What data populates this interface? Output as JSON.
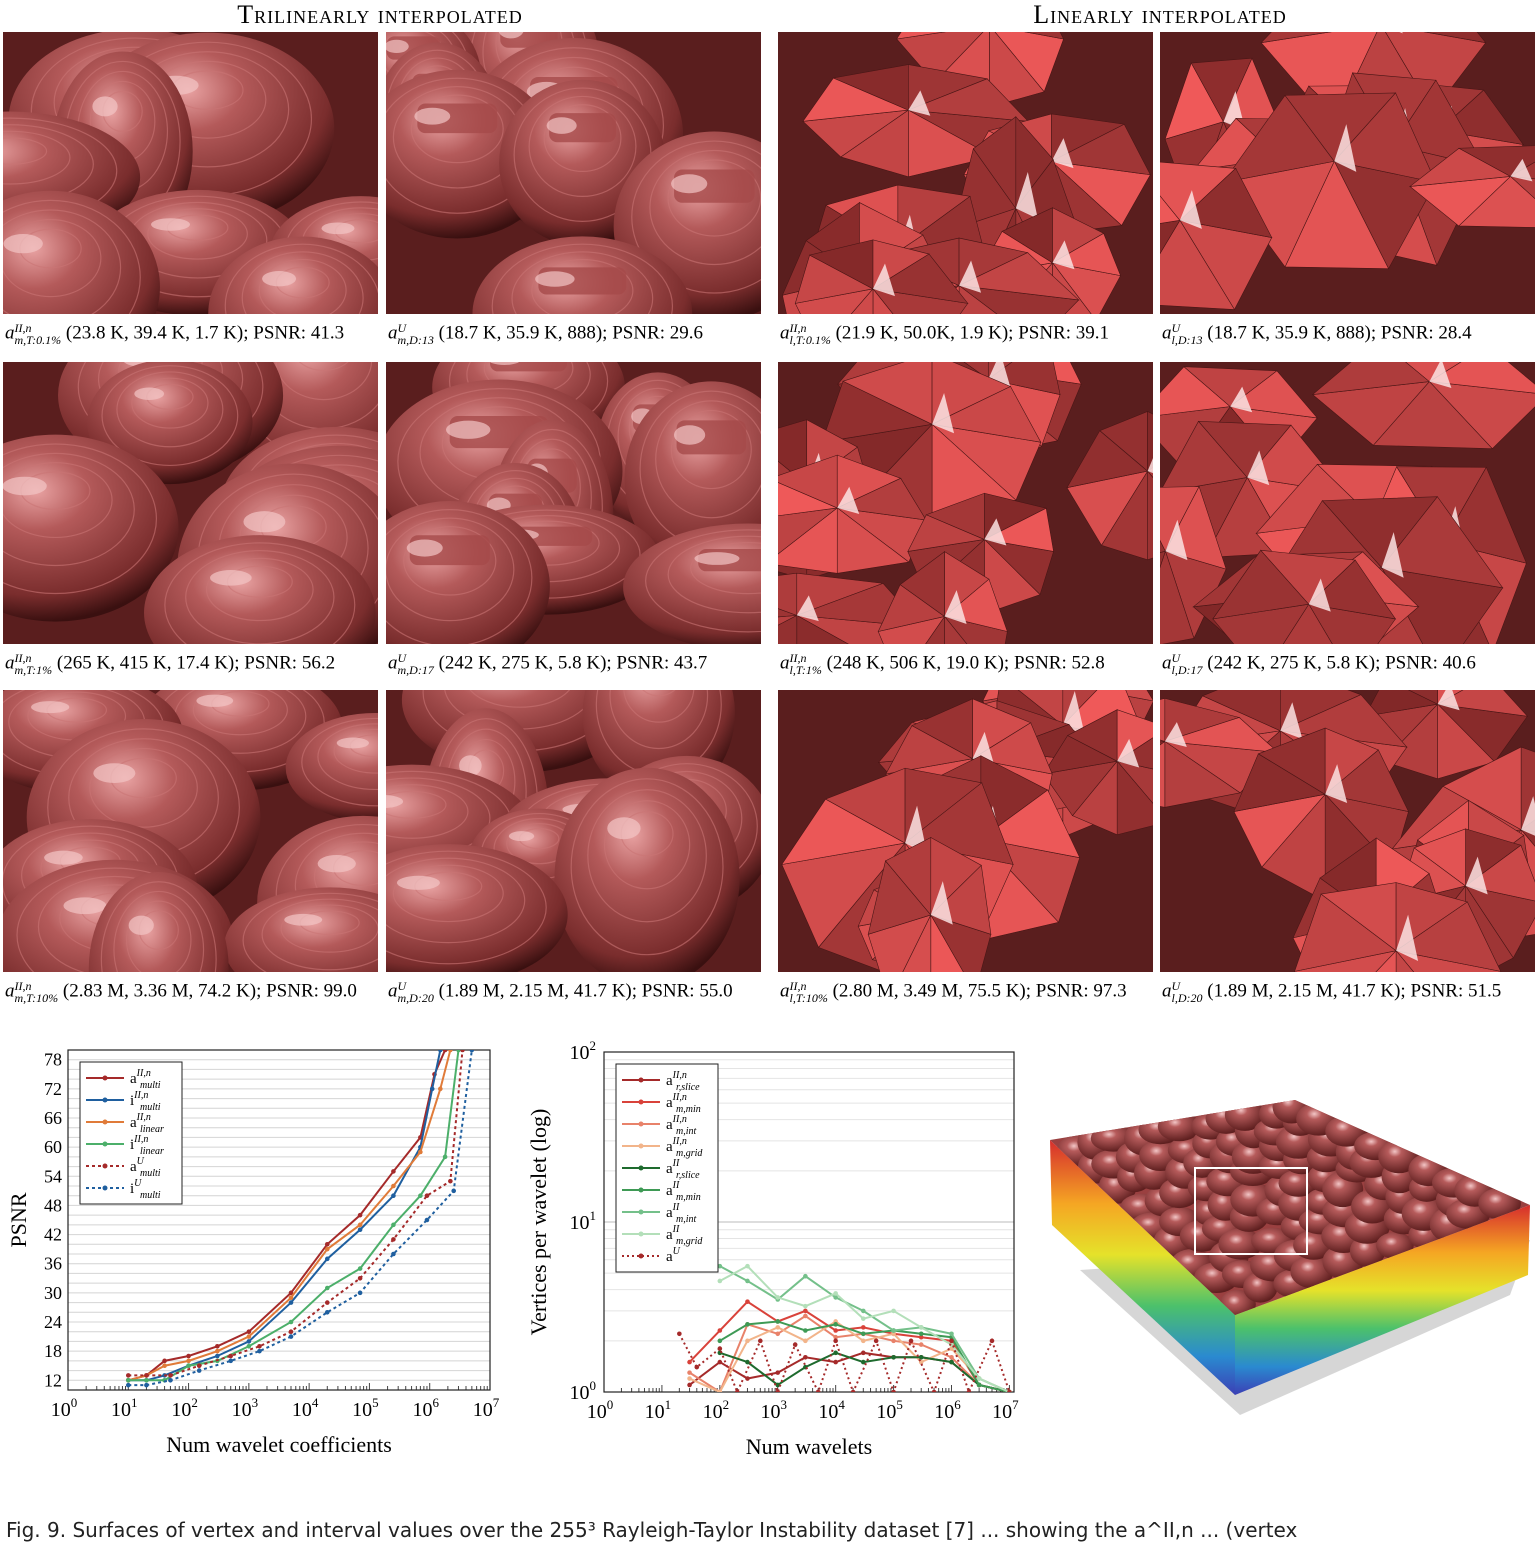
{
  "sections": {
    "left": "Trilinearly interpolated",
    "right": "Linearly interpolated"
  },
  "tiles": [
    {
      "style": "smooth",
      "seed": 1
    },
    {
      "style": "blocky",
      "seed": 2
    },
    {
      "style": "faceted",
      "seed": 3
    },
    {
      "style": "faceted-big",
      "seed": 4
    },
    {
      "style": "smooth",
      "seed": 5
    },
    {
      "style": "blocky",
      "seed": 6
    },
    {
      "style": "faceted",
      "seed": 7
    },
    {
      "style": "faceted-big",
      "seed": 8
    },
    {
      "style": "smooth",
      "seed": 9
    },
    {
      "style": "smooth",
      "seed": 10
    },
    {
      "style": "faceted",
      "seed": 11
    },
    {
      "style": "faceted",
      "seed": 12
    }
  ],
  "captions": [
    {
      "base": "a",
      "sup": "II,n",
      "sub": "m,T:0.1%",
      "text": "(23.8 K, 39.4 K, 1.7 K); PSNR: 41.3"
    },
    {
      "base": "a",
      "sup": "U",
      "sub": "m,D:13",
      "text": "(18.7 K, 35.9 K, 888); PSNR: 29.6"
    },
    {
      "base": "a",
      "sup": "II,n",
      "sub": "l,T:0.1%",
      "text": "(21.9 K, 50.0K, 1.9 K); PSNR: 39.1"
    },
    {
      "base": "a",
      "sup": "U",
      "sub": "l,D:13",
      "text": "(18.7 K, 35.9 K, 888); PSNR: 28.4"
    },
    {
      "base": "a",
      "sup": "II,n",
      "sub": "m,T:1%",
      "text": "(265 K, 415 K, 17.4 K); PSNR: 56.2"
    },
    {
      "base": "a",
      "sup": "U",
      "sub": "m,D:17",
      "text": "(242 K, 275 K, 5.8 K); PSNR: 43.7"
    },
    {
      "base": "a",
      "sup": "II,n",
      "sub": "l,T:1%",
      "text": "(248 K, 506 K, 19.0 K); PSNR: 52.8"
    },
    {
      "base": "a",
      "sup": "U",
      "sub": "l,D:17",
      "text": "(242 K, 275 K, 5.8 K); PSNR: 40.6"
    },
    {
      "base": "a",
      "sup": "II,n",
      "sub": "m,T:10%",
      "text": "(2.83 M, 3.36 M, 74.2 K); PSNR: 99.0"
    },
    {
      "base": "a",
      "sup": "U",
      "sub": "m,D:20",
      "text": "(1.89 M, 2.15 M, 41.7 K); PSNR: 55.0"
    },
    {
      "base": "a",
      "sup": "II,n",
      "sub": "l,T:10%",
      "text": "(2.80 M, 3.49 M, 75.5 K); PSNR: 97.3"
    },
    {
      "base": "a",
      "sup": "U",
      "sub": "l,D:20",
      "text": "(1.89 M, 2.15 M, 41.7 K); PSNR: 51.5"
    }
  ],
  "chart_data": [
    {
      "type": "line",
      "xlabel": "Num wavelet coefficients",
      "ylabel": "PSNR",
      "xscale": "log",
      "xlim": [
        1,
        10000000
      ],
      "ylim": [
        10,
        80
      ],
      "xtick_exponents": [
        "0",
        "1",
        "2",
        "3",
        "4",
        "5",
        "6",
        "7"
      ],
      "yticks": [
        "12",
        "18",
        "24",
        "30",
        "36",
        "42",
        "48",
        "54",
        "60",
        "66",
        "72",
        "78"
      ],
      "grid": true,
      "legend_placement": "top-left",
      "series": [
        {
          "name_base": "a",
          "sup": "II,n",
          "sub": "multi",
          "color": "#a52a2a",
          "dash": "",
          "x": [
            10,
            20,
            40,
            100,
            300,
            1000,
            5000,
            20000,
            70000,
            250000,
            700000,
            1200000,
            1800000
          ],
          "y": [
            12,
            13,
            16,
            17,
            19,
            22,
            30,
            40,
            46,
            55,
            62,
            75,
            80
          ]
        },
        {
          "name_base": "i",
          "sup": "II,n",
          "sub": "multi",
          "color": "#1f5f9f",
          "dash": "",
          "x": [
            10,
            20,
            40,
            100,
            300,
            1000,
            5000,
            20000,
            70000,
            250000,
            700000,
            1100000,
            1500000
          ],
          "y": [
            12,
            12,
            13,
            15,
            17,
            20,
            28,
            37,
            43,
            50,
            60,
            72,
            80
          ]
        },
        {
          "name_base": "a",
          "sup": "II,n",
          "sub": "linear",
          "color": "#e07b39",
          "dash": "",
          "x": [
            10,
            20,
            40,
            100,
            300,
            1000,
            5000,
            20000,
            70000,
            250000,
            700000,
            1500000,
            2200000
          ],
          "y": [
            12,
            13,
            15,
            16,
            18,
            21,
            29,
            39,
            44,
            52,
            59,
            72,
            80
          ]
        },
        {
          "name_base": "i",
          "sup": "II,n",
          "sub": "linear",
          "color": "#4caf6a",
          "dash": "",
          "x": [
            10,
            20,
            40,
            100,
            300,
            1000,
            5000,
            20000,
            70000,
            250000,
            700000,
            1800000,
            3000000
          ],
          "y": [
            12,
            12,
            12,
            15,
            16,
            19,
            24,
            31,
            35,
            44,
            50,
            58,
            80
          ]
        },
        {
          "name_base": "a",
          "sup": "U",
          "sub": "multi",
          "color": "#a52a2a",
          "dash": "3,3",
          "x": [
            10,
            20,
            50,
            150,
            500,
            1500,
            5000,
            20000,
            70000,
            250000,
            900000,
            2200000,
            3500000
          ],
          "y": [
            13,
            13,
            13,
            15,
            17,
            19,
            22,
            28,
            33,
            41,
            50,
            53,
            80
          ]
        },
        {
          "name_base": "i",
          "sup": "U",
          "sub": "multi",
          "color": "#1f5f9f",
          "dash": "3,3",
          "x": [
            10,
            20,
            50,
            150,
            500,
            1500,
            5000,
            20000,
            70000,
            250000,
            900000,
            2500000,
            5000000
          ],
          "y": [
            11,
            11,
            12,
            14,
            16,
            18,
            21,
            26,
            30,
            38,
            45,
            51,
            80
          ]
        }
      ]
    },
    {
      "type": "line",
      "xlabel": "Num wavelets",
      "ylabel": "Vertices per wavelet (log)",
      "xscale": "log",
      "yscale": "log",
      "xlim": [
        1,
        12000000
      ],
      "ylim": [
        1,
        100
      ],
      "xtick_exponents": [
        "0",
        "1",
        "2",
        "3",
        "4",
        "5",
        "6",
        "7"
      ],
      "ytick_exponents": [
        "0",
        "1",
        "2"
      ],
      "grid": true,
      "legend_placement": "top-left",
      "series": [
        {
          "name_base": "a",
          "sup": "II,n",
          "sub": "r,slice",
          "color": "#a52a2a",
          "dash": "",
          "x": [
            30,
            100,
            300,
            1000,
            3000,
            10000,
            30000,
            100000,
            300000,
            1000000,
            3000000,
            10000000
          ],
          "y": [
            1.1,
            1.5,
            1.2,
            1.3,
            1.6,
            1.5,
            1.7,
            1.6,
            1.6,
            1.5,
            1.1,
            1.0
          ]
        },
        {
          "name_base": "a",
          "sup": "II,n",
          "sub": "m,min",
          "color": "#d9423a",
          "dash": "",
          "x": [
            30,
            100,
            300,
            1000,
            3000,
            10000,
            30000,
            100000,
            300000,
            1000000,
            3000000,
            10000000
          ],
          "y": [
            1.5,
            2.3,
            3.4,
            2.6,
            3.0,
            2.3,
            2.4,
            2.2,
            2.1,
            2.0,
            1.1,
            1.0
          ]
        },
        {
          "name_base": "a",
          "sup": "II,n",
          "sub": "m,int",
          "color": "#e8826a",
          "dash": "",
          "x": [
            30,
            100,
            300,
            1000,
            3000,
            10000,
            30000,
            100000,
            300000,
            1000000,
            3000000,
            10000000
          ],
          "y": [
            1.3,
            1.0,
            2.5,
            2.2,
            2.8,
            2.1,
            2.2,
            2.0,
            1.9,
            1.6,
            1.1,
            1.0
          ]
        },
        {
          "name_base": "a",
          "sup": "II,n",
          "sub": "m,grid",
          "color": "#f2b48a",
          "dash": "",
          "x": [
            30,
            100,
            300,
            1000,
            3000,
            10000,
            30000,
            100000,
            300000,
            1000000,
            3000000,
            10000000
          ],
          "y": [
            1.2,
            1.0,
            2.0,
            2.4,
            2.0,
            2.6,
            2.0,
            2.2,
            1.5,
            1.8,
            1.2,
            1.0
          ]
        },
        {
          "name_base": "a",
          "sup": "II",
          "sub": "r,slice",
          "color": "#1e6b2e",
          "dash": "",
          "x": [
            100,
            300,
            1000,
            3000,
            10000,
            30000,
            100000,
            300000,
            1000000,
            3000000,
            10000000
          ],
          "y": [
            1.7,
            1.5,
            1.1,
            1.4,
            1.7,
            1.5,
            1.6,
            1.6,
            1.5,
            1.1,
            1.0
          ]
        },
        {
          "name_base": "a",
          "sup": "II",
          "sub": "m,min",
          "color": "#3e9a55",
          "dash": "",
          "x": [
            100,
            300,
            1000,
            3000,
            10000,
            30000,
            100000,
            300000,
            1000000,
            3000000,
            10000000
          ],
          "y": [
            2.0,
            2.5,
            2.6,
            2.3,
            2.5,
            2.2,
            2.3,
            2.2,
            2.1,
            1.1,
            1.0
          ]
        },
        {
          "name_base": "a",
          "sup": "II",
          "sub": "m,int",
          "color": "#74c08a",
          "dash": "",
          "x": [
            100,
            300,
            1000,
            3000,
            10000,
            30000,
            100000,
            300000,
            1000000,
            3000000,
            10000000
          ],
          "y": [
            5.5,
            4.5,
            3.5,
            4.8,
            3.6,
            3.0,
            2.3,
            2.4,
            2.2,
            1.2,
            1.0
          ]
        },
        {
          "name_base": "a",
          "sup": "II",
          "sub": "m,grid",
          "color": "#b3dfb9",
          "dash": "",
          "x": [
            100,
            300,
            1000,
            3000,
            10000,
            30000,
            100000,
            300000,
            1000000,
            3000000,
            10000000
          ],
          "y": [
            4.5,
            5.5,
            3.6,
            3.2,
            3.8,
            2.7,
            3.0,
            2.4,
            1.9,
            1.2,
            1.0
          ]
        },
        {
          "name_base": "a",
          "sup": "U",
          "sub": "",
          "color": "#a52a2a",
          "dash": "2,3",
          "x": [
            20,
            40,
            100,
            200,
            500,
            1000,
            2000,
            5000,
            10000,
            20000,
            50000,
            100000,
            200000,
            500000,
            1000000,
            2000000,
            5000000,
            10000000
          ],
          "y": [
            2.2,
            1.4,
            1.8,
            1.0,
            2.0,
            1.0,
            1.9,
            1.0,
            2.0,
            1.0,
            2.0,
            1.0,
            2.0,
            1.0,
            2.0,
            1.0,
            2.0,
            1.0
          ]
        }
      ]
    }
  ],
  "figure_caption": "Fig. 9. Surfaces of vertex and interval values over the 255³ Rayleigh-Taylor Instability dataset [7] ... showing the a^II,n ... (vertex"
}
